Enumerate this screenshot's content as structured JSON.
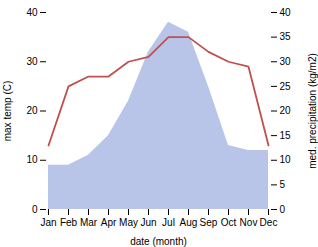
{
  "chart_data": {
    "type": "line",
    "xlabel": "date (month)",
    "ylabel": "max temp (C)",
    "y2label": "med. precipitation (kg/m2)",
    "categories": [
      "Jan",
      "Feb",
      "Mar",
      "Apr",
      "May",
      "Jun",
      "Jul",
      "Aug",
      "Sep",
      "Oct",
      "Nov",
      "Dec"
    ],
    "series": [
      {
        "type": "area",
        "axis": "y2",
        "color": "#b8c4e8",
        "values": [
          9,
          9,
          11,
          15,
          22,
          32,
          38,
          36,
          25,
          13,
          12,
          12
        ]
      },
      {
        "type": "line",
        "color": "#c0504d",
        "values": [
          13,
          25,
          27,
          27,
          30,
          31,
          35,
          35,
          32,
          30,
          29,
          13
        ]
      }
    ],
    "ylim": [
      0,
      40
    ],
    "yticks": [
      0,
      10,
      20,
      30,
      40
    ],
    "y2lim": [
      0,
      40
    ],
    "y2ticks": [
      0,
      5,
      10,
      15,
      20,
      25,
      30,
      35,
      40
    ],
    "grid": false
  }
}
